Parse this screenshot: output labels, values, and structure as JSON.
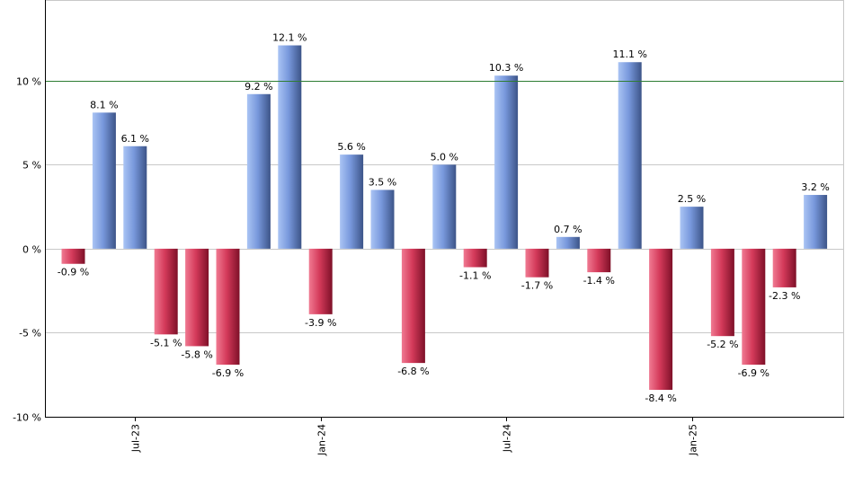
{
  "chart_data": {
    "type": "bar",
    "title": "",
    "xlabel": "",
    "ylabel": "",
    "ylim": [
      -10,
      14.8
    ],
    "yticks": [
      -10,
      -5,
      0,
      5,
      10
    ],
    "ytick_labels": [
      "-10 %",
      "-5 %",
      "0 %",
      "5 %",
      "10 %"
    ],
    "reference_line": 10,
    "grid": true,
    "series": [
      {
        "values": [
          -0.9,
          8.1,
          6.1,
          -5.1,
          -5.8,
          -6.9,
          9.2,
          12.1,
          -3.9,
          5.6,
          3.5,
          -6.8,
          5.0,
          -1.1,
          10.3,
          -1.7,
          0.7,
          -1.4,
          11.1,
          -8.4,
          2.5,
          -5.2,
          -6.9,
          -2.3,
          3.2
        ],
        "labels": [
          "-0.9 %",
          "8.1 %",
          "6.1 %",
          "-5.1 %",
          "-5.8 %",
          "-6.9 %",
          "9.2 %",
          "12.1 %",
          "-3.9 %",
          "5.6 %",
          "3.5 %",
          "-6.8 %",
          "5.0 %",
          "-1.1 %",
          "10.3 %",
          "-1.7 %",
          "0.7 %",
          "-1.4 %",
          "11.1 %",
          "-8.4 %",
          "2.5 %",
          "-5.2 %",
          "-6.9 %",
          "-2.3 %",
          "3.2 %"
        ]
      }
    ],
    "x_ticks": [
      {
        "index": 2,
        "label": "Jul-23"
      },
      {
        "index": 8,
        "label": "Jan-24"
      },
      {
        "index": 14,
        "label": "Jul-24"
      },
      {
        "index": 20,
        "label": "Jan-25"
      }
    ],
    "colors": {
      "positive": "#5a7ac8",
      "negative": "#b0203e",
      "grid": "#c8c8c8",
      "reference_line": "#2e7d32",
      "axis": "#000000"
    }
  }
}
